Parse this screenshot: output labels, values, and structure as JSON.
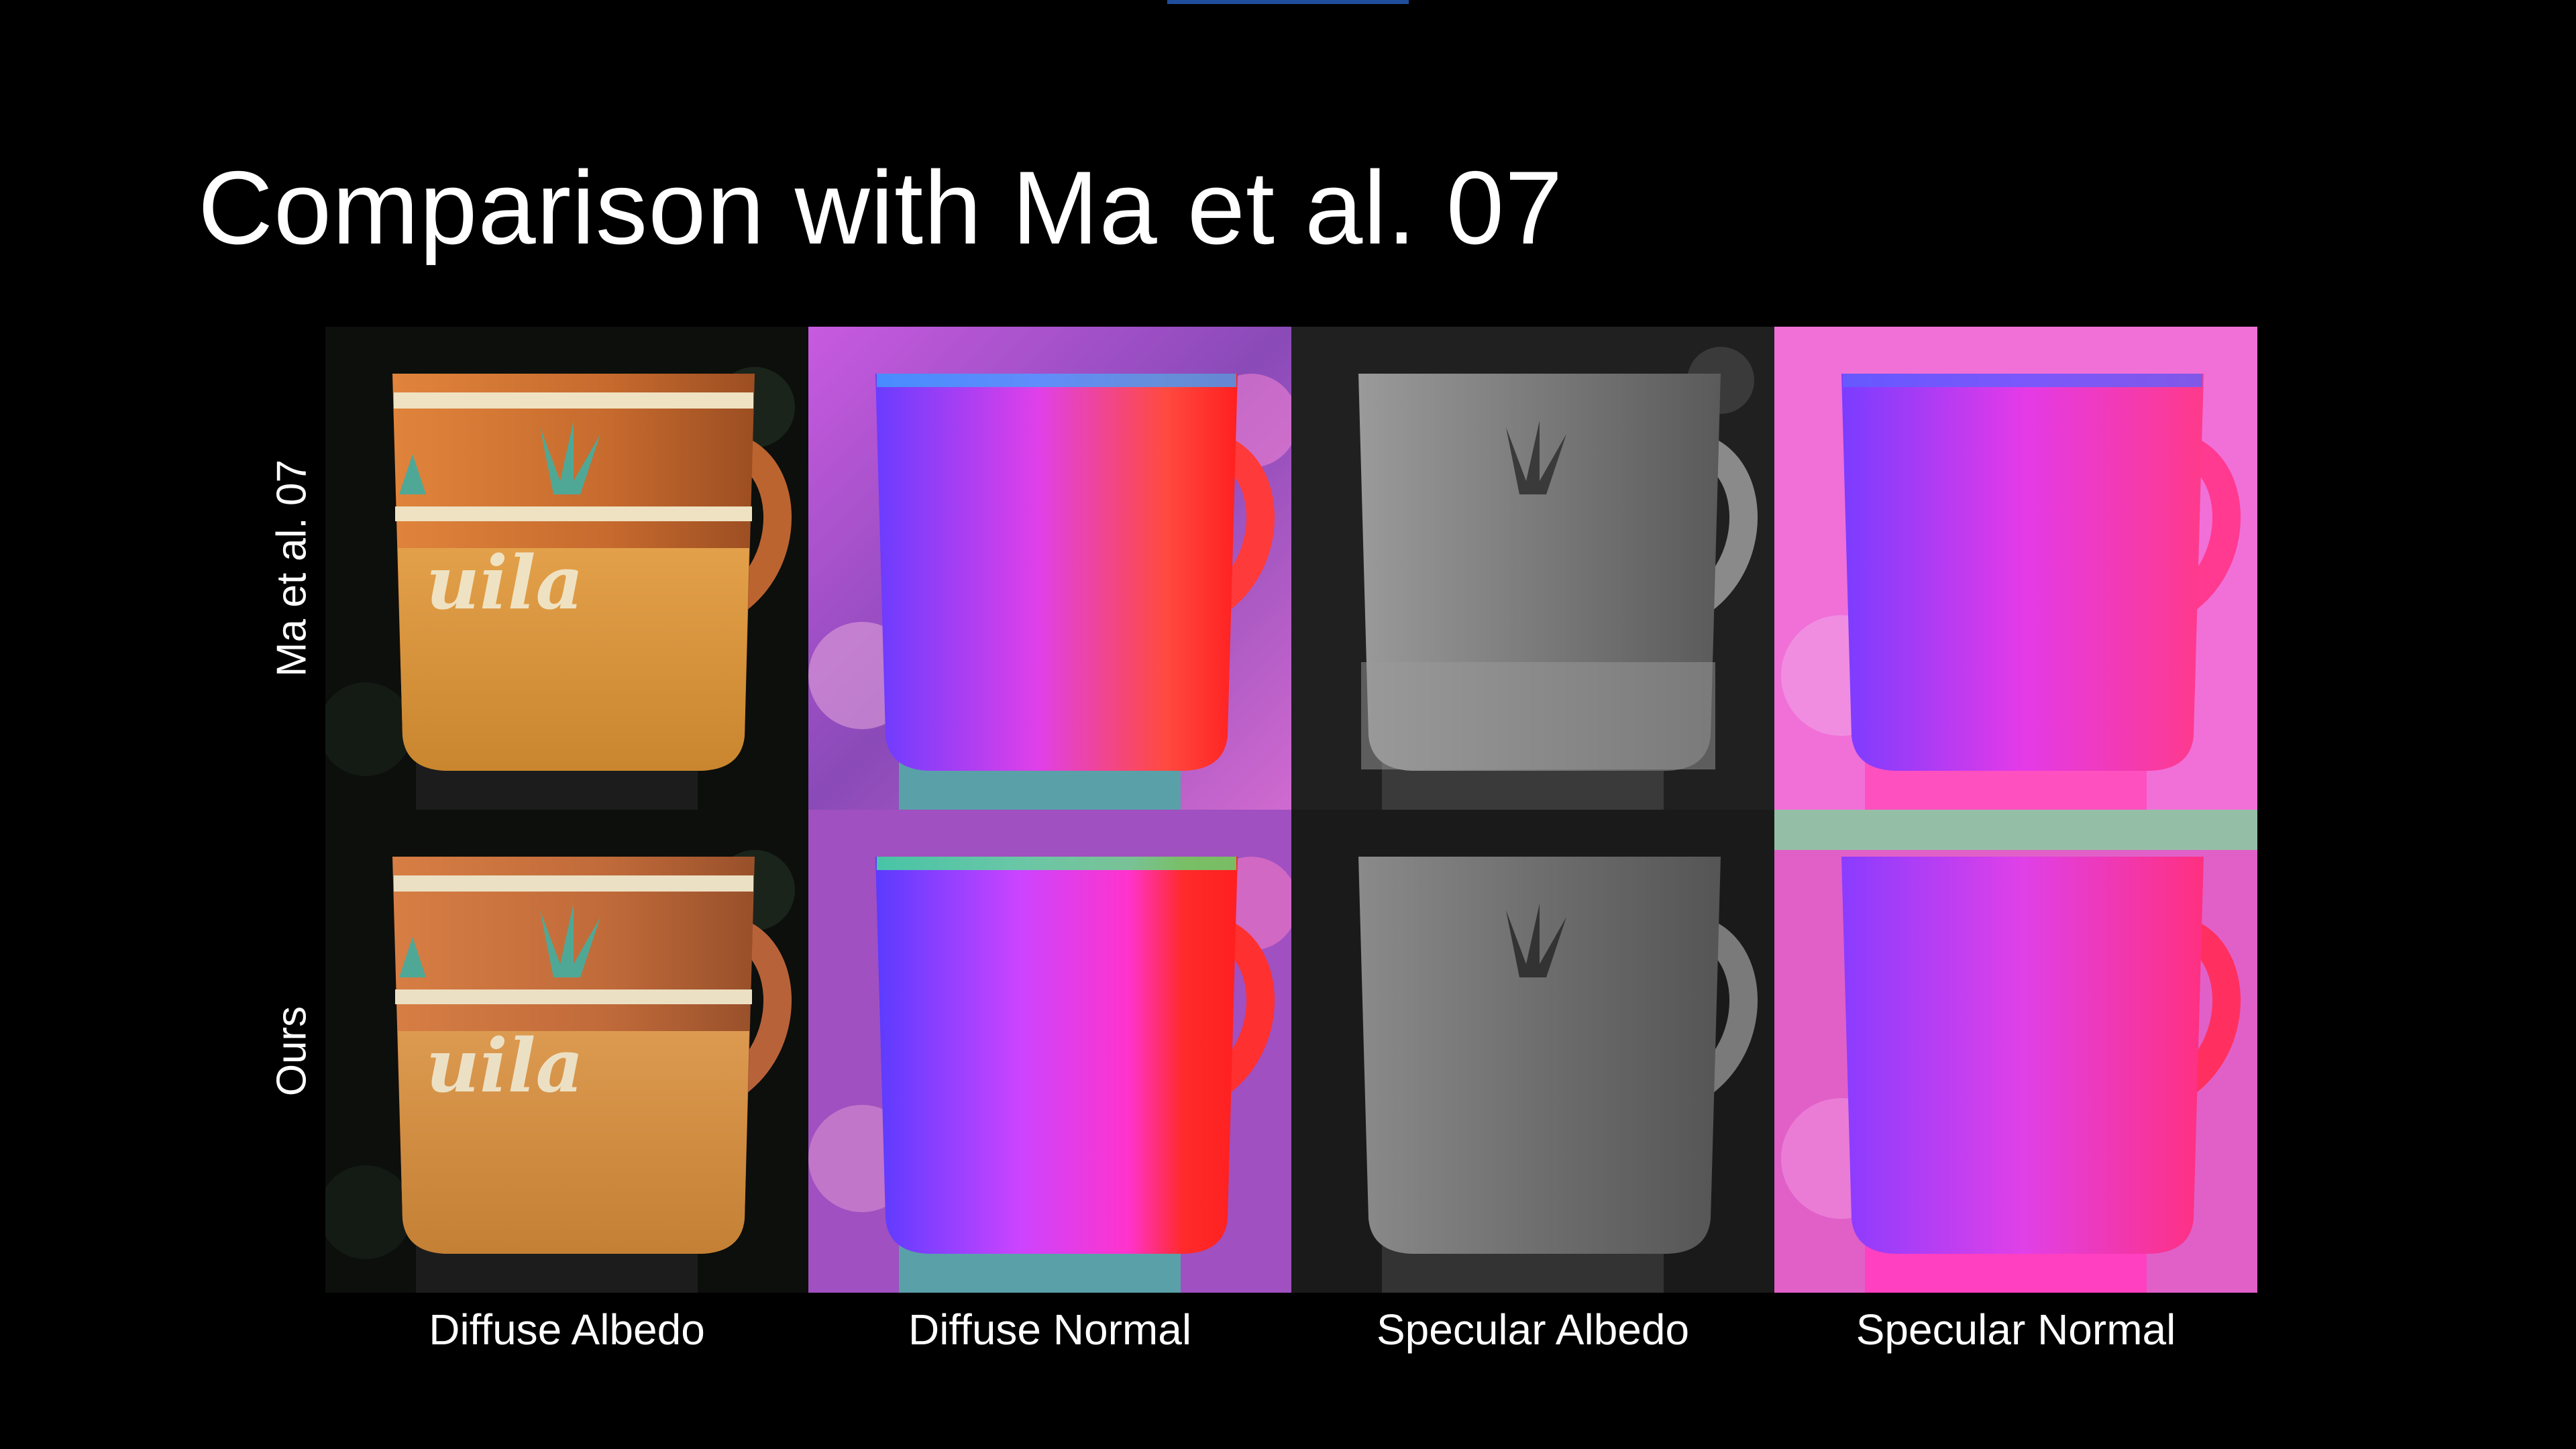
{
  "slide": {
    "title": "Comparison with Ma et al. 07",
    "accent_color": "#1f4e9c"
  },
  "rows": [
    {
      "label": "Ma et al. 07"
    },
    {
      "label": "Ours"
    }
  ],
  "columns": [
    {
      "label": "Diffuse Albedo"
    },
    {
      "label": "Diffuse Normal"
    },
    {
      "label": "Specular Albedo"
    },
    {
      "label": "Specular Normal"
    }
  ],
  "mug_text": "uila",
  "colors": {
    "background": "#000000",
    "albedo_terracotta": "#c86a30",
    "albedo_cream": "#efe2c2",
    "albedo_leaf": "#4fa896",
    "normal_magenta": "#ff33ff",
    "normal_blue": "#5a3bff",
    "normal_red": "#ff2a2a",
    "specular_gray": "#7a7a7a"
  }
}
